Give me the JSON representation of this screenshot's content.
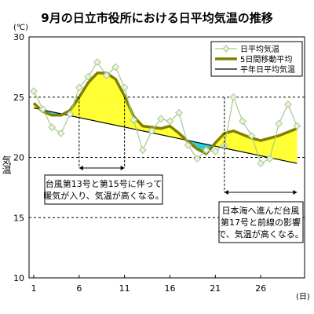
{
  "chart_data": {
    "type": "line",
    "title": "9月の日立市役所における日平均気温の推移",
    "ylabel": "気温",
    "y_unit": "(℃)",
    "x_unit": "(日)",
    "ylim": [
      10,
      30
    ],
    "yticks": [
      10,
      15,
      20,
      25,
      30
    ],
    "xlim": [
      1,
      30
    ],
    "xticks": [
      1,
      6,
      11,
      16,
      21,
      26
    ],
    "grid": "horizontal-dashed",
    "legend_position": "top-right",
    "series": [
      {
        "name": "日平均気温",
        "color": "#a8c890",
        "x": [
          1,
          2,
          3,
          4,
          5,
          6,
          7,
          8,
          9,
          10,
          11,
          12,
          13,
          14,
          15,
          16,
          17,
          18,
          19,
          20,
          21,
          22,
          23,
          24,
          25,
          26,
          27,
          28,
          29,
          30
        ],
        "values": [
          25.5,
          24.0,
          22.5,
          22.0,
          23.6,
          25.8,
          26.7,
          27.9,
          26.8,
          27.5,
          25.8,
          23.1,
          20.6,
          22.2,
          23.2,
          23.0,
          23.7,
          21.0,
          19.9,
          20.6,
          20.5,
          21.0,
          25.0,
          23.0,
          21.8,
          19.5,
          19.9,
          22.8,
          24.4,
          22.6
        ]
      },
      {
        "name": "5日間移動平均",
        "color": "#808000",
        "x": [
          1,
          2,
          3,
          4,
          5,
          6,
          7,
          8,
          9,
          10,
          11,
          12,
          13,
          14,
          15,
          16,
          17,
          18,
          19,
          20,
          21,
          22,
          23,
          24,
          25,
          26,
          27,
          28,
          29,
          30
        ],
        "values": [
          24.5,
          23.8,
          23.5,
          23.5,
          23.9,
          25.0,
          26.2,
          27.0,
          27.0,
          26.5,
          25.1,
          23.4,
          22.6,
          22.5,
          22.4,
          22.6,
          22.0,
          21.3,
          20.7,
          20.3,
          21.2,
          22.0,
          22.2,
          21.9,
          21.6,
          21.4,
          21.6,
          21.8,
          22.1,
          22.4
        ]
      },
      {
        "name": "平年日平均気温",
        "color": "#000000",
        "x": [
          1,
          30
        ],
        "values": [
          24.1,
          19.5
        ]
      }
    ],
    "fill_colors": {
      "above": "#ffff33",
      "below": "#33cccc"
    },
    "annotations": [
      {
        "lines": [
          "台風第13号と第15号に伴って",
          "暖気が入り、気温が高くなる。"
        ],
        "x_range": [
          6,
          11
        ]
      },
      {
        "lines": [
          "日本海へ進んだ台風",
          "第17号と前線の影響",
          "で、気温が高くなる。"
        ],
        "x_range": [
          22,
          30
        ]
      }
    ]
  }
}
